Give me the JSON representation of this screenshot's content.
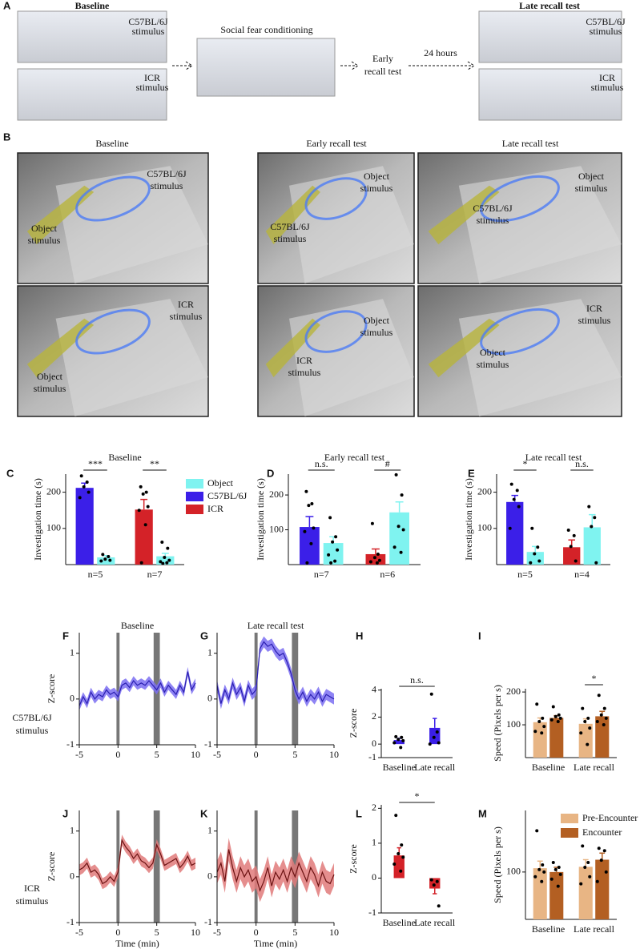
{
  "figure": {
    "panel_a": {
      "letter": "A",
      "baseline": "Baseline",
      "baseline_c57": [
        "C57BL/6J",
        "stimulus"
      ],
      "baseline_icr": [
        "ICR",
        "stimulus"
      ],
      "conditioning": "Social fear conditioning",
      "early": [
        "Early",
        "recall test"
      ],
      "interval": "24 hours",
      "late": "Late recall test",
      "late_c57": [
        "C57BL/6J",
        "stimulus"
      ],
      "late_icr": [
        "ICR",
        "stimulus"
      ]
    },
    "panel_b": {
      "letter": "B",
      "titles": [
        "Baseline",
        "Early recall test",
        "Late recall test"
      ],
      "images": [
        {
          "labels": [
            {
              "lines": [
                "C57BL/6J",
                "stimulus"
              ],
              "color": "#3b1fe8"
            },
            {
              "lines": [
                "Object",
                "stimulus"
              ],
              "color": "#7ff3f0"
            }
          ]
        },
        {
          "labels": [
            {
              "lines": [
                "ICR",
                "stimulus"
              ],
              "color": "#d42228"
            },
            {
              "lines": [
                "Object",
                "stimulus"
              ],
              "color": "#7ff3f0"
            }
          ]
        },
        {
          "labels": [
            {
              "lines": [
                "Object",
                "stimulus"
              ],
              "color": "#7ff3f0"
            },
            {
              "lines": [
                "C57BL/6J",
                "stimulus"
              ],
              "color": "#3b1fe8"
            }
          ]
        },
        {
          "labels": [
            {
              "lines": [
                "Object",
                "stimulus"
              ],
              "color": "#7ff3f0"
            },
            {
              "lines": [
                "ICR",
                "stimulus"
              ],
              "color": "#d42228"
            }
          ]
        },
        {
          "labels": [
            {
              "lines": [
                "Object",
                "stimulus"
              ],
              "color": "#7ff3f0"
            },
            {
              "lines": [
                "C57BL/6J",
                "stimulus"
              ],
              "color": "#3b1fe8"
            }
          ]
        },
        {
          "labels": [
            {
              "lines": [
                "Object",
                "stimulus"
              ],
              "color": "#7ff3f0"
            },
            {
              "lines": [
                "ICR",
                "stimulus"
              ],
              "color": "#d42228"
            }
          ]
        }
      ]
    },
    "row_labels": [
      {
        "lines": [
          "C57BL/6J",
          "stimulus"
        ],
        "color": "#3b1fe8"
      },
      {
        "lines": [
          "ICR",
          "stimulus"
        ],
        "color": "#d42228"
      }
    ]
  },
  "chart_data": [
    {
      "type": "bar",
      "panel": "C",
      "title": "Baseline",
      "ylabel": "Investigation time (s)",
      "categories": [
        "n=5",
        "n=7"
      ],
      "ylim": [
        0,
        250
      ],
      "yticks": [
        100,
        200
      ],
      "significance": [
        "***",
        "**"
      ],
      "legend": "right",
      "series": [
        {
          "name": "Object",
          "color": "#7ff3f0",
          "values": [
            20,
            23
          ],
          "errors": [
            5,
            8
          ],
          "points": [
            [
              28,
              22,
              15,
              12,
              10
            ],
            [
              62,
              45,
              20,
              12,
              8,
              5,
              3
            ]
          ]
        },
        {
          "name": "C57BL/6J",
          "color": "#3b1fe8",
          "values": [
            212,
            null
          ],
          "errors": [
            13,
            null
          ],
          "points": [
            [
              245,
              228,
              215,
              200,
              185
            ],
            null
          ]
        },
        {
          "name": "ICR",
          "color": "#d42228",
          "values": [
            null,
            152
          ],
          "errors": [
            null,
            28
          ],
          "points": [
            null,
            [
              215,
              200,
              195,
              160,
              150,
              110,
              5
            ]
          ]
        }
      ]
    },
    {
      "type": "bar",
      "panel": "D",
      "title": "Early recall test",
      "ylabel": "Investigation time (s)",
      "categories": [
        "n=7",
        "n=6"
      ],
      "ylim": [
        0,
        260
      ],
      "yticks": [
        100,
        200
      ],
      "significance": [
        "n.s.",
        "#"
      ],
      "series": [
        {
          "name": "Object",
          "color": "#7ff3f0",
          "values": [
            62,
            150
          ],
          "errors": [
            18,
            30
          ],
          "points": [
            [
              135,
              80,
              65,
              42,
              28,
              10,
              5
            ],
            [
              258,
              200,
              110,
              100,
              50,
              35
            ]
          ]
        },
        {
          "name": "C57BL/6J",
          "color": "#3b1fe8",
          "values": [
            108,
            null
          ],
          "errors": [
            30,
            null
          ],
          "points": [
            [
              210,
              175,
              170,
              105,
              95,
              60,
              5
            ],
            null
          ]
        },
        {
          "name": "ICR",
          "color": "#d42228",
          "values": [
            null,
            30
          ],
          "errors": [
            null,
            15
          ],
          "points": [
            null,
            [
              118,
              30,
              20,
              12,
              8,
              5
            ]
          ]
        }
      ]
    },
    {
      "type": "bar",
      "panel": "E",
      "title": "Late recall test",
      "ylabel": "Investigation time (s)",
      "categories": [
        "n=5",
        "n=4"
      ],
      "ylim": [
        0,
        250
      ],
      "yticks": [
        100,
        200
      ],
      "significance": [
        "*",
        "n.s."
      ],
      "series": [
        {
          "name": "Object",
          "color": "#7ff3f0",
          "values": [
            35,
            103
          ],
          "errors": [
            15,
            35
          ],
          "points": [
            [
              100,
              48,
              30,
              10,
              5
            ],
            [
              160,
              130,
              105,
              5
            ]
          ]
        },
        {
          "name": "C57BL/6J",
          "color": "#3b1fe8",
          "values": [
            173,
            null
          ],
          "errors": [
            18,
            null
          ],
          "points": [
            [
              222,
              205,
              180,
              160,
              100
            ],
            null
          ]
        },
        {
          "name": "ICR",
          "color": "#d42228",
          "values": [
            null,
            48
          ],
          "errors": [
            null,
            20
          ],
          "points": [
            null,
            [
              95,
              80,
              50,
              10
            ]
          ]
        }
      ]
    },
    {
      "type": "line",
      "panel": "F",
      "title": "Baseline",
      "ylabel": "Z-score",
      "color": "#2a1fb0",
      "band_color": "#7b6ff2",
      "xlim": [
        -5,
        10
      ],
      "xticks": [
        -5,
        0,
        5,
        10
      ],
      "ylim": [
        -1,
        1.45
      ],
      "yticks": [
        -1,
        0,
        1
      ],
      "highlight": [
        [
          -0.2,
          0.2
        ],
        [
          4.6,
          5.4
        ]
      ],
      "x": [
        -5,
        -4.5,
        -4,
        -3.5,
        -3,
        -2.5,
        -2,
        -1.5,
        -1,
        -0.5,
        0,
        0.5,
        1,
        1.5,
        2,
        2.5,
        3,
        3.5,
        4,
        4.5,
        5,
        5.5,
        6,
        6.5,
        7,
        7.5,
        8,
        8.5,
        9,
        9.5,
        10
      ],
      "values": [
        -0.15,
        0.05,
        -0.1,
        0.15,
        0,
        0.1,
        0.05,
        0.2,
        0.1,
        0.15,
        0.05,
        0.3,
        0.35,
        0.25,
        0.4,
        0.3,
        0.35,
        0.3,
        0.4,
        0.3,
        0.2,
        0.35,
        0.15,
        0.3,
        0.2,
        0.1,
        0.3,
        0.15,
        0.6,
        0.2,
        0.35
      ],
      "sem": [
        0.1,
        0.1,
        0.1,
        0.1,
        0.1,
        0.1,
        0.1,
        0.1,
        0.1,
        0.1,
        0.1,
        0.1,
        0.1,
        0.1,
        0.1,
        0.1,
        0.1,
        0.1,
        0.1,
        0.1,
        0.1,
        0.1,
        0.1,
        0.1,
        0.1,
        0.1,
        0.1,
        0.1,
        0.1,
        0.1,
        0.1
      ]
    },
    {
      "type": "line",
      "panel": "G",
      "title": "Late recall test",
      "color": "#2a1fb0",
      "band_color": "#7b6ff2",
      "xlim": [
        -5,
        10
      ],
      "xticks": [
        -5,
        0,
        5,
        10
      ],
      "ylim": [
        -1,
        1.45
      ],
      "yticks": [
        -1,
        0,
        1
      ],
      "highlight": [
        [
          -0.2,
          0.2
        ],
        [
          4.6,
          5.4
        ]
      ],
      "x": [
        -5,
        -4.5,
        -4,
        -3.5,
        -3,
        -2.5,
        -2,
        -1.5,
        -1,
        -0.5,
        0,
        0.5,
        1,
        1.5,
        2,
        2.5,
        3,
        3.5,
        4,
        4.5,
        5,
        5.5,
        6,
        6.5,
        7,
        7.5,
        8,
        8.5,
        9,
        9.5,
        10
      ],
      "values": [
        0.3,
        -0.1,
        0.2,
        0,
        0.35,
        0.1,
        0.25,
        -0.05,
        0.3,
        0.1,
        0.2,
        1.1,
        1.25,
        1.15,
        1.2,
        1.05,
        0.95,
        1,
        0.8,
        0.55,
        0.2,
        0,
        0.15,
        -0.05,
        0.1,
        0,
        0.15,
        -0.05,
        0.1,
        0.05,
        0
      ],
      "sem": [
        0.12,
        0.12,
        0.12,
        0.12,
        0.12,
        0.12,
        0.12,
        0.12,
        0.12,
        0.12,
        0.12,
        0.12,
        0.12,
        0.12,
        0.12,
        0.12,
        0.12,
        0.12,
        0.12,
        0.12,
        0.12,
        0.12,
        0.12,
        0.12,
        0.12,
        0.12,
        0.12,
        0.12,
        0.12,
        0.12,
        0.12
      ]
    },
    {
      "type": "bar",
      "panel": "H",
      "ylabel": "Z-score",
      "categories": [
        "Baseline",
        "Late recall"
      ],
      "color": "#3b1fe8",
      "ylim": [
        -1,
        4.1
      ],
      "yticks": [
        -1,
        0,
        2,
        4
      ],
      "significance": "n.s.",
      "values": [
        0.3,
        1.2
      ],
      "errors": [
        0.12,
        0.7
      ],
      "points": [
        [
          0.55,
          0.5,
          0.35,
          0.25,
          0.1,
          -0.25
        ],
        [
          3.7,
          0.9,
          0.5,
          0.1,
          0
        ]
      ]
    },
    {
      "type": "bar",
      "panel": "I",
      "ylabel": "Speed (Pixels per s)",
      "categories": [
        "Baseline",
        "Late recall"
      ],
      "ylim": [
        0,
        210
      ],
      "yticks": [
        100,
        200
      ],
      "significance": [
        null,
        "*"
      ],
      "series": [
        {
          "name": "Pre-Encounter",
          "color": "#e8b584",
          "values": [
            108,
            103
          ],
          "errors": [
            13,
            15
          ],
          "points": [
            [
              163,
              120,
              110,
              95,
              80,
              75
            ],
            [
              150,
              120,
              110,
              90,
              75,
              40
            ]
          ]
        },
        {
          "name": "Encounter",
          "color": "#b35f22",
          "values": [
            121,
            126
          ],
          "errors": [
            7,
            15
          ],
          "points": [
            [
              155,
              130,
              125,
              120,
              115,
              110
            ],
            [
              190,
              150,
              130,
              120,
              110,
              100
            ]
          ]
        }
      ]
    },
    {
      "type": "line",
      "panel": "J",
      "xlabel": "Time (min)",
      "ylabel": "Z-score",
      "color": "#6b1212",
      "band_color": "#e07a7a",
      "xlim": [
        -5,
        10
      ],
      "xticks": [
        -5,
        0,
        5,
        10
      ],
      "ylim": [
        -1,
        1.45
      ],
      "yticks": [
        -1,
        0,
        1
      ],
      "highlight": [
        [
          -0.2,
          0.2
        ],
        [
          4.6,
          5.4
        ]
      ],
      "x": [
        -5,
        -4.5,
        -4,
        -3.5,
        -3,
        -2.5,
        -2,
        -1.5,
        -1,
        -0.5,
        0,
        0.5,
        1,
        1.5,
        2,
        2.5,
        3,
        3.5,
        4,
        4.5,
        5,
        5.5,
        6,
        6.5,
        7,
        7.5,
        8,
        8.5,
        9,
        9.5,
        10
      ],
      "values": [
        0.15,
        0.2,
        0.3,
        0.1,
        0.15,
        0.05,
        -0.15,
        -0.1,
        0,
        -0.1,
        0.1,
        0.8,
        0.65,
        0.55,
        0.4,
        0.5,
        0.35,
        0.3,
        0.2,
        0.3,
        0.7,
        0.5,
        0.25,
        0.3,
        0.35,
        0.4,
        0.2,
        0.3,
        0.45,
        0.25,
        0.3
      ],
      "sem": [
        0.12,
        0.12,
        0.12,
        0.12,
        0.12,
        0.12,
        0.12,
        0.12,
        0.12,
        0.12,
        0.12,
        0.12,
        0.12,
        0.12,
        0.12,
        0.12,
        0.12,
        0.12,
        0.12,
        0.12,
        0.12,
        0.12,
        0.12,
        0.12,
        0.12,
        0.12,
        0.12,
        0.12,
        0.12,
        0.12,
        0.12
      ]
    },
    {
      "type": "line",
      "panel": "K",
      "xlabel": "Time (min)",
      "color": "#6b1212",
      "band_color": "#e07a7a",
      "xlim": [
        -5,
        10
      ],
      "xticks": [
        -5,
        0,
        5,
        10
      ],
      "ylim": [
        -1,
        1.45
      ],
      "yticks": [
        -1,
        0,
        1
      ],
      "highlight": [
        [
          -0.2,
          0.2
        ],
        [
          4.6,
          5.4
        ]
      ],
      "x": [
        -5,
        -4.5,
        -4,
        -3.5,
        -3,
        -2.5,
        -2,
        -1.5,
        -1,
        -0.5,
        0,
        0.5,
        1,
        1.5,
        2,
        2.5,
        3,
        3.5,
        4,
        4.5,
        5,
        5.5,
        6,
        6.5,
        7,
        7.5,
        8,
        8.5,
        9,
        9.5,
        10
      ],
      "values": [
        0.1,
        0.3,
        -0.1,
        0.6,
        0.2,
        -0.1,
        0.2,
        0,
        0.15,
        -0.1,
        0,
        -0.3,
        -0.1,
        0.2,
        -0.2,
        0.1,
        -0.05,
        0.15,
        -0.1,
        0.2,
        0,
        0.3,
        0.1,
        -0.1,
        0.2,
        0.05,
        -0.2,
        0.1,
        -0.1,
        -0.15,
        0.05
      ],
      "sem": [
        0.25,
        0.25,
        0.25,
        0.25,
        0.25,
        0.25,
        0.25,
        0.25,
        0.25,
        0.25,
        0.25,
        0.25,
        0.25,
        0.25,
        0.25,
        0.25,
        0.25,
        0.25,
        0.25,
        0.25,
        0.25,
        0.25,
        0.25,
        0.25,
        0.25,
        0.25,
        0.25,
        0.25,
        0.25,
        0.25,
        0.25
      ]
    },
    {
      "type": "bar",
      "panel": "L",
      "ylabel": "Z-score",
      "categories": [
        "Baseline",
        "Late recall"
      ],
      "color": "#d42228",
      "ylim": [
        -1,
        2.1
      ],
      "yticks": [
        -1,
        0,
        1,
        2
      ],
      "significance": "*",
      "values": [
        0.65,
        -0.3
      ],
      "errors": [
        0.22,
        0.15
      ],
      "points": [
        [
          1.8,
          0.95,
          0.7,
          0.6,
          0.4,
          0.2
        ],
        [
          -0.05,
          -0.1,
          -0.2,
          -0.8
        ]
      ]
    },
    {
      "type": "bar",
      "panel": "M",
      "ylabel": "Speed (Pixels per s)",
      "categories": [
        "Baseline",
        "Late recall"
      ],
      "ylim": [
        0,
        230
      ],
      "yticks": [
        100
      ],
      "legend": "top",
      "series": [
        {
          "name": "Pre-Encounter",
          "color": "#e8b584",
          "values": [
            108,
            111
          ],
          "errors": [
            15,
            15
          ],
          "points": [
            [
              187,
              115,
              105,
              100,
              90,
              80
            ],
            [
              155,
              120,
              110,
              90,
              75
            ]
          ]
        },
        {
          "name": "Encounter",
          "color": "#b35f22",
          "values": [
            100,
            126
          ],
          "errors": [
            10,
            14
          ],
          "points": [
            [
              120,
              110,
              105,
              95,
              85,
              70
            ],
            [
              150,
              145,
              125,
              100,
              80
            ]
          ]
        }
      ]
    }
  ]
}
